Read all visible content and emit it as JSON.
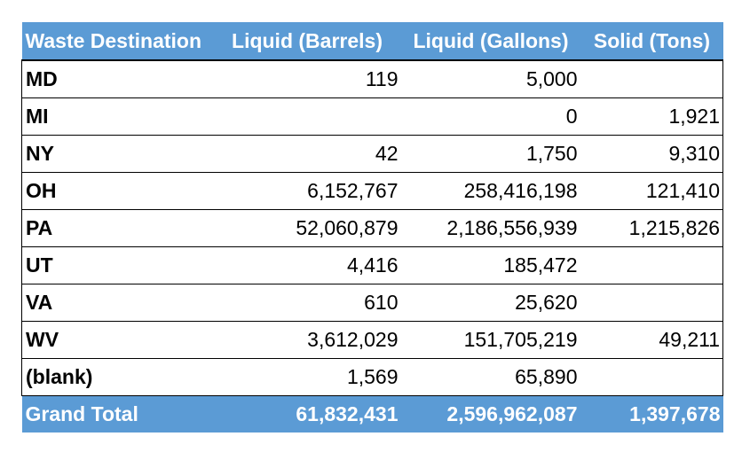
{
  "table": {
    "headers": [
      "Waste Destination",
      "Liquid (Barrels)",
      "Liquid (Gallons)",
      "Solid (Tons)"
    ],
    "rows": [
      [
        "MD",
        "119",
        "5,000",
        ""
      ],
      [
        "MI",
        "",
        "0",
        "1,921"
      ],
      [
        "NY",
        "42",
        "1,750",
        "9,310"
      ],
      [
        "OH",
        "6,152,767",
        "258,416,198",
        "121,410"
      ],
      [
        "PA",
        "52,060,879",
        "2,186,556,939",
        "1,215,826"
      ],
      [
        "UT",
        "4,416",
        "185,472",
        ""
      ],
      [
        "VA",
        "610",
        "25,620",
        ""
      ],
      [
        "WV",
        "3,612,029",
        "151,705,219",
        "49,211"
      ],
      [
        "(blank)",
        "1,569",
        "65,890",
        ""
      ]
    ],
    "total": [
      "Grand Total",
      "61,832,431",
      "2,596,962,087",
      "1,397,678"
    ]
  },
  "colors": {
    "header_bg": "#5b9bd5",
    "header_text": "#ffffff",
    "body_bg": "#ffffff",
    "body_text": "#000000",
    "grid": "#000000"
  }
}
